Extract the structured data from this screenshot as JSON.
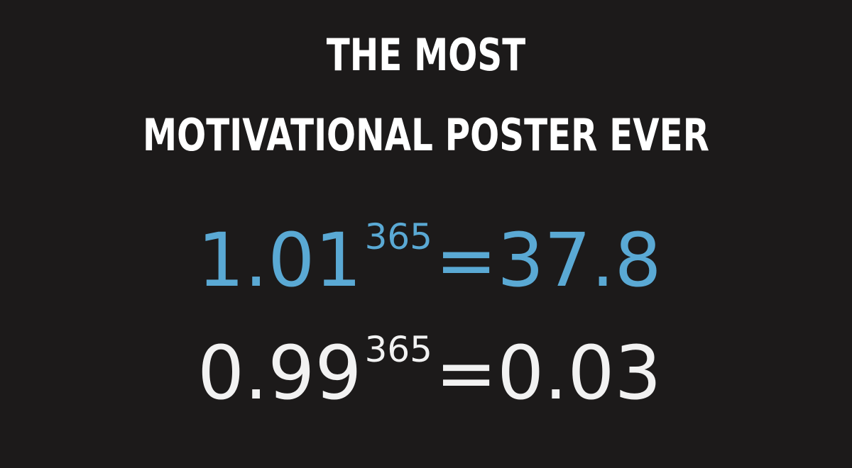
{
  "colors": {
    "background": "#1c1a1a",
    "title": "#ffffff",
    "growth": "#5aa9d4",
    "decline": "#f2f2f2"
  },
  "title": {
    "line1": "THE MOST",
    "line2": "MOTIVATIONAL POSTER EVER"
  },
  "equations": [
    {
      "base": "1.01",
      "exponent": "365",
      "equals": "=",
      "result": "37.8"
    },
    {
      "base": "0.99",
      "exponent": "365",
      "equals": "=",
      "result": "0.03"
    }
  ]
}
